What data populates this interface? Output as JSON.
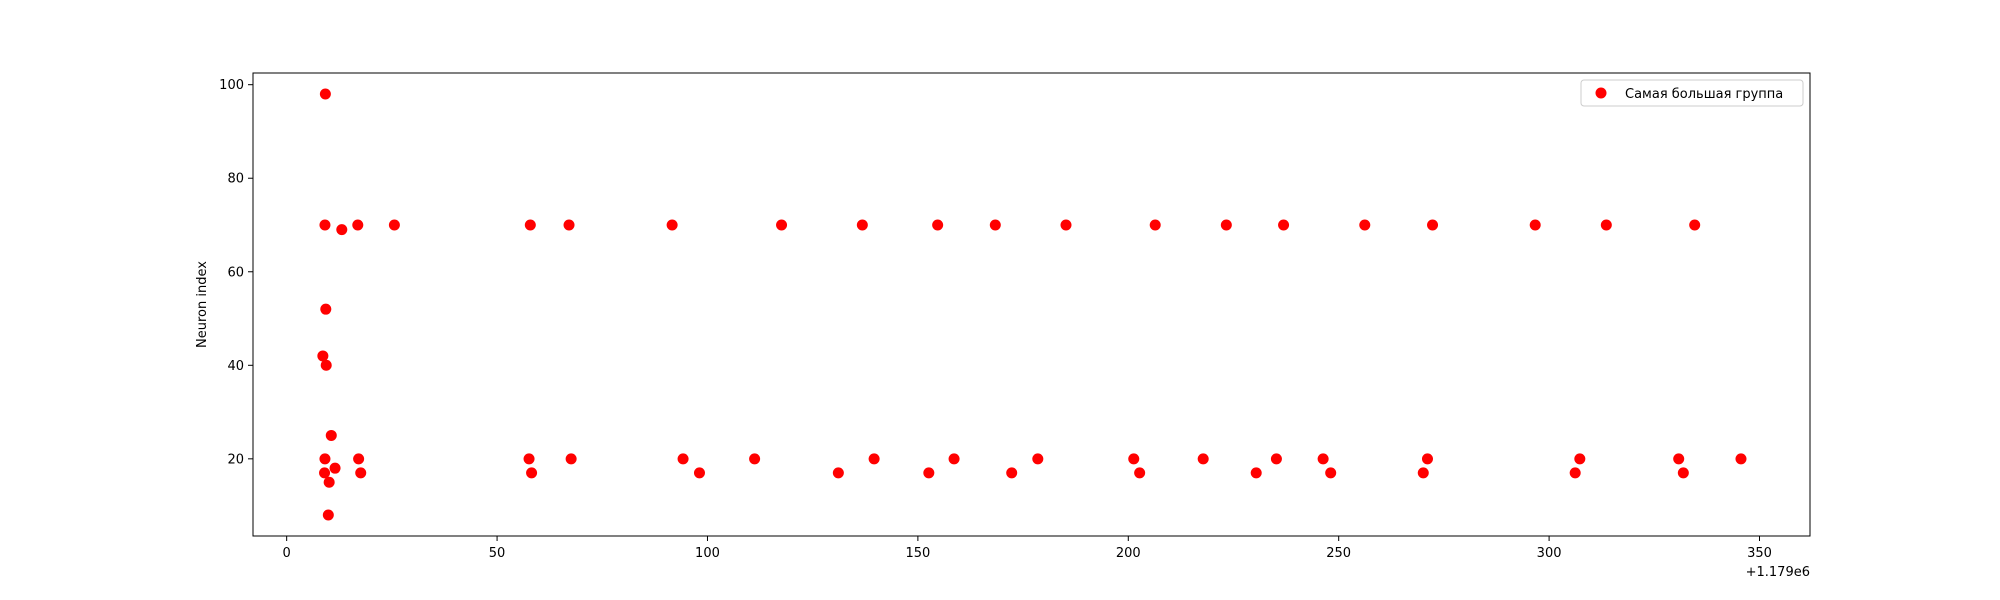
{
  "chart_data": {
    "type": "scatter",
    "title": "",
    "xlabel": "",
    "ylabel": "Neuron index",
    "x_offset_label": "+1.179e6",
    "xlim": [
      -8,
      362
    ],
    "ylim": [
      3.5,
      102.5
    ],
    "xticks": [
      0,
      50,
      100,
      150,
      200,
      250,
      300,
      350
    ],
    "yticks": [
      20,
      40,
      60,
      80,
      100
    ],
    "grid": false,
    "legend_position": "top-right",
    "color": "#ff0000",
    "series": [
      {
        "name": "Самая большая группа",
        "points": [
          [
            9.2,
            98
          ],
          [
            9.1,
            70
          ],
          [
            9.3,
            52
          ],
          [
            8.6,
            42
          ],
          [
            9.4,
            40
          ],
          [
            10.6,
            25
          ],
          [
            9.1,
            20
          ],
          [
            9.0,
            17
          ],
          [
            11.5,
            18
          ],
          [
            10.1,
            15
          ],
          [
            9.9,
            8
          ],
          [
            13.1,
            69
          ],
          [
            16.9,
            70
          ],
          [
            25.6,
            70
          ],
          [
            17.1,
            20
          ],
          [
            17.6,
            17
          ],
          [
            57.9,
            70
          ],
          [
            57.6,
            20
          ],
          [
            58.2,
            17
          ],
          [
            67.1,
            70
          ],
          [
            67.6,
            20
          ],
          [
            91.6,
            70
          ],
          [
            94.2,
            20
          ],
          [
            98.1,
            17
          ],
          [
            111.2,
            20
          ],
          [
            117.6,
            70
          ],
          [
            131.1,
            17
          ],
          [
            136.8,
            70
          ],
          [
            139.6,
            20
          ],
          [
            152.6,
            17
          ],
          [
            154.7,
            70
          ],
          [
            158.6,
            20
          ],
          [
            168.4,
            70
          ],
          [
            172.3,
            17
          ],
          [
            178.5,
            20
          ],
          [
            185.2,
            70
          ],
          [
            201.3,
            20
          ],
          [
            202.7,
            17
          ],
          [
            206.4,
            70
          ],
          [
            217.8,
            20
          ],
          [
            223.3,
            70
          ],
          [
            230.4,
            17
          ],
          [
            235.2,
            20
          ],
          [
            236.9,
            70
          ],
          [
            246.3,
            20
          ],
          [
            248.1,
            17
          ],
          [
            256.2,
            70
          ],
          [
            270.1,
            17
          ],
          [
            271.1,
            20
          ],
          [
            272.3,
            70
          ],
          [
            296.7,
            70
          ],
          [
            306.2,
            17
          ],
          [
            307.3,
            20
          ],
          [
            313.6,
            70
          ],
          [
            330.8,
            20
          ],
          [
            331.9,
            17
          ],
          [
            334.6,
            70
          ],
          [
            345.6,
            20
          ]
        ]
      }
    ]
  }
}
